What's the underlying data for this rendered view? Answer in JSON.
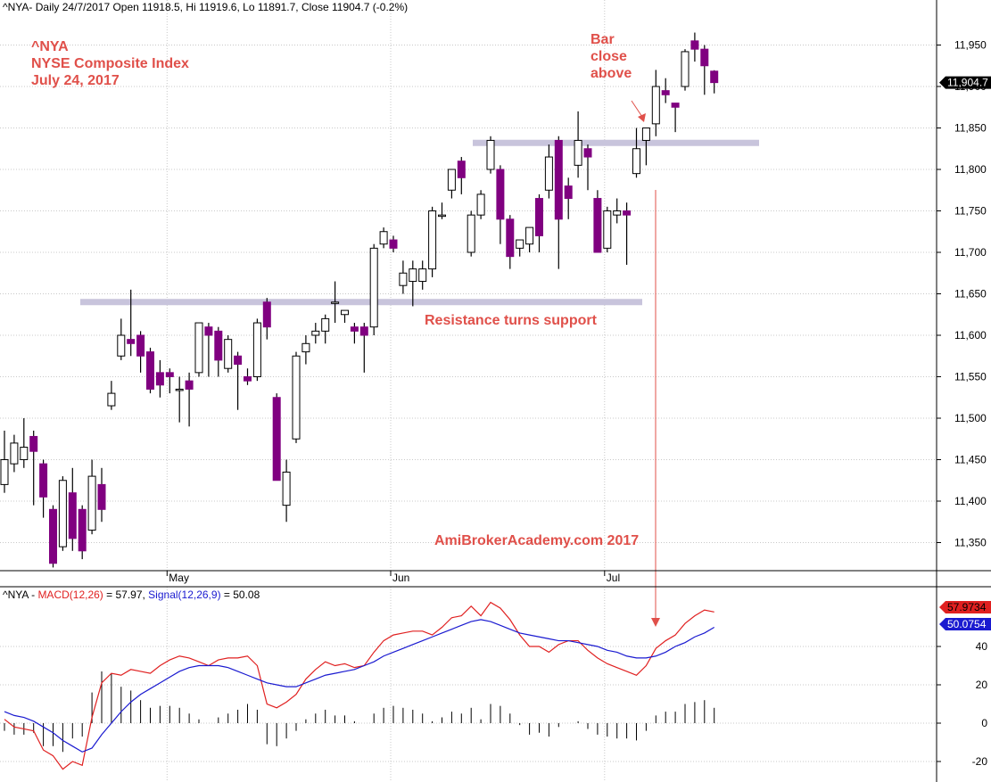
{
  "header": {
    "main_symbol": "^NYA",
    "main_info": "- Daily 24/7/2017 Open 11918.5, Hi 11919.6, Lo 11891.7, Close 11904.7 (-0.2%)",
    "macd_symbol": "^NYA",
    "macd_dash": " - ",
    "macd_label": "MACD(12,26)",
    "macd_value": " = 57.97, ",
    "signal_label": "Signal(12,26,9)",
    "signal_value": " = 50.08"
  },
  "annotations": {
    "title_line1": "^NYA",
    "title_line2": "NYSE Composite Index",
    "title_line3": "July 24, 2017",
    "bar_close_1": "Bar",
    "bar_close_2": "close",
    "bar_close_3": "above",
    "resistance": "Resistance turns support",
    "watermark": "AmiBrokerAcademy.com   2017"
  },
  "colors": {
    "up_candle": "#ffffff",
    "down_candle": "#800080",
    "macd_line": "#e02020",
    "signal_line": "#1a1ad0",
    "annotation": "#e0504a",
    "support_band": "#c8c4dc",
    "histogram": "#000000"
  },
  "chart_data": [
    {
      "type": "candlestick",
      "symbol": "^NYA",
      "ylim": [
        11315,
        12000
      ],
      "yticks": [
        11350,
        11400,
        11450,
        11500,
        11550,
        11600,
        11650,
        11700,
        11750,
        11800,
        11850,
        11900,
        11950
      ],
      "ytick_labels": [
        "11,350",
        "11,400",
        "11,450",
        "11,500",
        "11,550",
        "11,600",
        "11,650",
        "11,700",
        "11,750",
        "11,800",
        "11,850",
        "11,900",
        "11,950"
      ],
      "x_labels": [
        {
          "label": "May",
          "index": 17
        },
        {
          "label": "Jun",
          "index": 40
        },
        {
          "label": "Jul",
          "index": 62
        }
      ],
      "last_close_label": "11,904.7",
      "support_lines": [
        {
          "label": "Resistance turns support",
          "value": 11640,
          "from_index": 8,
          "to_index": 67
        },
        {
          "label": "Bar close above",
          "value": 11832,
          "from_index": 50,
          "to_index": 80
        }
      ],
      "candles": [
        [
          11420,
          11485,
          11410,
          11450
        ],
        [
          11445,
          11480,
          11435,
          11470
        ],
        [
          11450,
          11500,
          11440,
          11465
        ],
        [
          11478,
          11485,
          11395,
          11460
        ],
        [
          11445,
          11450,
          11380,
          11405
        ],
        [
          11390,
          11395,
          11320,
          11325
        ],
        [
          11345,
          11430,
          11340,
          11425
        ],
        [
          11410,
          11440,
          11340,
          11355
        ],
        [
          11390,
          11395,
          11330,
          11340
        ],
        [
          11365,
          11450,
          11360,
          11430
        ],
        [
          11420,
          11440,
          11375,
          11390
        ],
        [
          11515,
          11545,
          11510,
          11530
        ],
        [
          11575,
          11620,
          11570,
          11600
        ],
        [
          11595,
          11655,
          11575,
          11590
        ],
        [
          11600,
          11605,
          11555,
          11575
        ],
        [
          11580,
          11585,
          11530,
          11535
        ],
        [
          11555,
          11570,
          11525,
          11540
        ],
        [
          11555,
          11560,
          11530,
          11550
        ],
        [
          11535,
          11550,
          11495,
          11535
        ],
        [
          11545,
          11555,
          11490,
          11535
        ],
        [
          11555,
          11615,
          11550,
          11615
        ],
        [
          11610,
          11615,
          11550,
          11600
        ],
        [
          11605,
          11610,
          11550,
          11570
        ],
        [
          11560,
          11600,
          11555,
          11595
        ],
        [
          11575,
          11580,
          11510,
          11565
        ],
        [
          11550,
          11560,
          11540,
          11545
        ],
        [
          11550,
          11620,
          11545,
          11615
        ],
        [
          11640,
          11645,
          11595,
          11610
        ],
        [
          11525,
          11530,
          11425,
          11425
        ],
        [
          11395,
          11450,
          11375,
          11435
        ],
        [
          11475,
          11580,
          11470,
          11575
        ],
        [
          11580,
          11600,
          11565,
          11590
        ],
        [
          11600,
          11615,
          11590,
          11605
        ],
        [
          11605,
          11625,
          11590,
          11620
        ],
        [
          11640,
          11665,
          11615,
          11640
        ],
        [
          11625,
          11630,
          11615,
          11630
        ],
        [
          11610,
          11615,
          11590,
          11605
        ],
        [
          11610,
          11615,
          11555,
          11600
        ],
        [
          11610,
          11710,
          11600,
          11705
        ],
        [
          11710,
          11730,
          11705,
          11725
        ],
        [
          11715,
          11720,
          11700,
          11705
        ],
        [
          11660,
          11690,
          11650,
          11675
        ],
        [
          11665,
          11690,
          11635,
          11680
        ],
        [
          11665,
          11690,
          11655,
          11680
        ],
        [
          11680,
          11755,
          11670,
          11750
        ],
        [
          11745,
          11760,
          11740,
          11745
        ],
        [
          11775,
          11800,
          11765,
          11800
        ],
        [
          11810,
          11815,
          11770,
          11790
        ],
        [
          11700,
          11750,
          11695,
          11745
        ],
        [
          11745,
          11775,
          11740,
          11770
        ],
        [
          11800,
          11840,
          11795,
          11835
        ],
        [
          11800,
          11805,
          11710,
          11740
        ],
        [
          11740,
          11745,
          11680,
          11695
        ],
        [
          11705,
          11715,
          11695,
          11715
        ],
        [
          11710,
          11725,
          11700,
          11730
        ],
        [
          11765,
          11770,
          11700,
          11720
        ],
        [
          11775,
          11830,
          11765,
          11815
        ],
        [
          11835,
          11840,
          11680,
          11740
        ],
        [
          11780,
          11790,
          11740,
          11765
        ],
        [
          11805,
          11870,
          11790,
          11835
        ],
        [
          11825,
          11830,
          11775,
          11815
        ],
        [
          11765,
          11775,
          11700,
          11700
        ],
        [
          11705,
          11755,
          11700,
          11750
        ],
        [
          11745,
          11765,
          11735,
          11750
        ],
        [
          11750,
          11760,
          11685,
          11745
        ],
        [
          11795,
          11850,
          11790,
          11825
        ],
        [
          11835,
          11845,
          11805,
          11850
        ],
        [
          11855,
          11920,
          11840,
          11900
        ],
        [
          11895,
          11910,
          11880,
          11890
        ],
        [
          11880,
          11880,
          11845,
          11875
        ],
        [
          11900,
          11945,
          11895,
          11942
        ],
        [
          11955,
          11965,
          11930,
          11945
        ],
        [
          11945,
          11950,
          11890,
          11925
        ],
        [
          11918.5,
          11919.6,
          11891.7,
          11904.7
        ]
      ]
    },
    {
      "type": "line",
      "name": "MACD(12,26)",
      "ylim": [
        -25,
        70
      ],
      "yticks": [
        -20,
        0,
        20,
        40
      ],
      "ytick_labels": [
        "-20",
        "0",
        "20",
        "40"
      ],
      "series": [
        {
          "name": "MACD(12,26)",
          "value_label": "57.9734",
          "values": [
            2,
            -2,
            -3,
            -4,
            -14,
            -17,
            -24,
            -20,
            -22,
            3,
            21,
            26,
            25,
            28,
            27,
            26,
            30,
            33,
            35,
            34,
            32,
            30,
            33,
            34,
            34,
            35,
            30,
            10,
            8,
            11,
            15,
            23,
            28,
            32,
            30,
            31,
            29,
            30,
            37,
            43,
            46,
            47,
            48,
            48,
            46,
            50,
            55,
            56,
            61,
            56,
            63,
            60,
            54,
            46,
            40,
            40,
            37,
            41,
            43,
            43,
            38,
            34,
            31,
            29,
            27,
            25,
            30,
            39,
            43,
            46,
            52,
            56,
            59,
            58
          ]
        },
        {
          "name": "Signal(12,26,9)",
          "value_label": "50.0754",
          "values": [
            6,
            4,
            3,
            1,
            -2,
            -5,
            -9,
            -12,
            -15,
            -13,
            -6,
            0,
            6,
            11,
            15,
            18,
            21,
            24,
            27,
            29,
            30,
            30,
            30,
            29,
            27,
            25,
            23,
            21,
            20,
            19,
            19,
            21,
            23,
            25,
            26,
            27,
            28,
            30,
            32,
            35,
            37,
            39,
            41,
            43,
            45,
            47,
            49,
            51,
            53,
            54,
            53,
            51,
            49,
            47,
            46,
            45,
            44,
            43,
            43,
            42,
            41,
            40,
            38,
            37,
            35,
            34,
            34,
            35,
            37,
            40,
            42,
            45,
            47,
            50
          ]
        }
      ],
      "histogram": [
        -4,
        -6,
        -6,
        -5,
        -12,
        -12,
        -15,
        -8,
        -7,
        16,
        27,
        26,
        19,
        17,
        12,
        8,
        9,
        9,
        8,
        5,
        2,
        0,
        3,
        5,
        7,
        10,
        7,
        -11,
        -12,
        -8,
        -4,
        2,
        5,
        7,
        4,
        4,
        1,
        0,
        5,
        8,
        9,
        8,
        7,
        5,
        1,
        3,
        6,
        5,
        8,
        2,
        10,
        9,
        5,
        -1,
        -6,
        -5,
        -7,
        -2,
        0,
        1,
        -3,
        -6,
        -7,
        -8,
        -8,
        -9,
        -4,
        4,
        6,
        6,
        10,
        11,
        12,
        8
      ]
    }
  ]
}
